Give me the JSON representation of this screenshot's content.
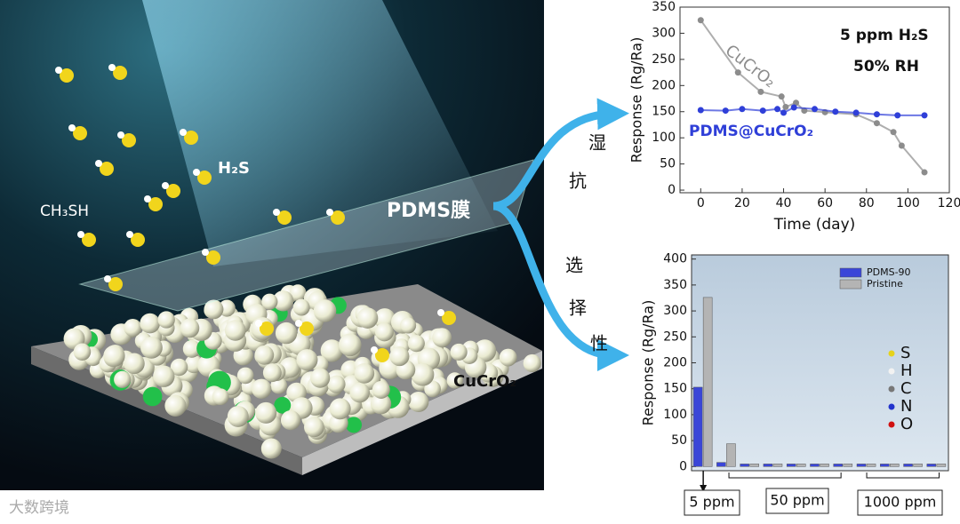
{
  "illustration": {
    "h2s_label": "H₂S",
    "ch3sh_label": "CH₃SH",
    "film_label": "PDMS膜",
    "substrate_label": "CuCrO₂",
    "humidity_resistance": [
      "湿",
      "抗"
    ],
    "selectivity": [
      "选",
      "择",
      "性"
    ],
    "watermark": "大数跨境"
  },
  "chart_data": [
    {
      "type": "line",
      "title": "5 ppm H₂S",
      "subtitle": "50% RH",
      "x_label": "Time (day)",
      "y_label": "Response (Rg/Ra)",
      "xlim": [
        -10,
        120
      ],
      "xticks": [
        0,
        20,
        40,
        60,
        80,
        100,
        120
      ],
      "ylim": [
        -5,
        350
      ],
      "yticks": [
        0,
        50,
        100,
        150,
        200,
        250,
        300,
        350
      ],
      "series": [
        {
          "name": "CuCrO₂",
          "color": "#8c8c8c",
          "x": [
            0,
            18,
            29,
            39,
            41,
            46,
            50,
            60,
            75,
            85,
            93,
            97,
            108
          ],
          "values": [
            325,
            225,
            188,
            179,
            159,
            167,
            152,
            149,
            145,
            128,
            111,
            85,
            34
          ]
        },
        {
          "name": "PDMS@CuCrO₂",
          "color": "#2f3fd8",
          "x": [
            0,
            12,
            20,
            30,
            37,
            40,
            45,
            55,
            65,
            75,
            85,
            95,
            108
          ],
          "values": [
            153,
            152,
            155,
            152,
            155,
            148,
            158,
            155,
            150,
            148,
            145,
            143,
            143
          ]
        }
      ]
    },
    {
      "type": "bar",
      "y_label": "Response (Rg/Ra)",
      "ylim": [
        -8,
        408
      ],
      "yticks": [
        0,
        50,
        100,
        150,
        200,
        250,
        300,
        350,
        400
      ],
      "categories": [
        null,
        null,
        null,
        null,
        null,
        null,
        null,
        null,
        null,
        null,
        null
      ],
      "series": [
        {
          "name": "PDMS-90",
          "color": "#3a46d8",
          "values": [
            153,
            8,
            5,
            5,
            5,
            5,
            5,
            5,
            5,
            5,
            5
          ]
        },
        {
          "name": "Pristine",
          "color": "#b4b4b4",
          "values": [
            326,
            44,
            5,
            5,
            5,
            5,
            5,
            5,
            5,
            5,
            5
          ]
        }
      ],
      "group_labels": [
        "5 ppm",
        "50 ppm",
        "1000 ppm"
      ],
      "elements": [
        "S",
        "H",
        "C",
        "N",
        "O"
      ],
      "element_colors": [
        "#e6d21a",
        "#f2f2f2",
        "#777777",
        "#2233cc",
        "#d01010"
      ]
    }
  ]
}
